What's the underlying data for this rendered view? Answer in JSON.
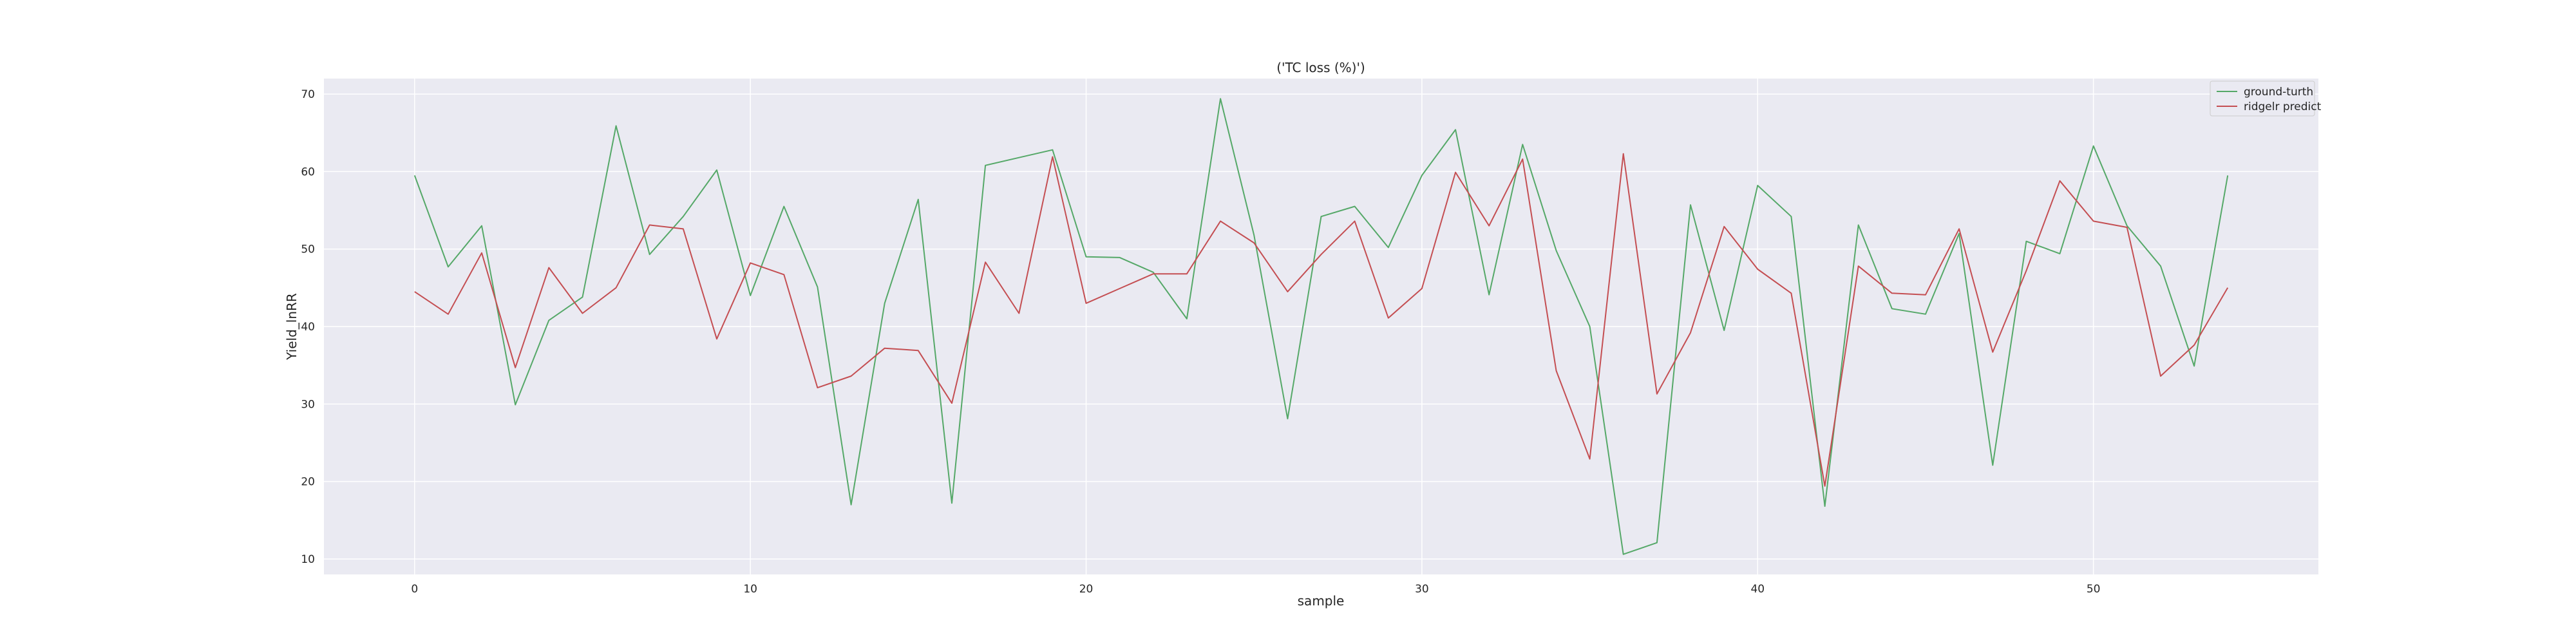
{
  "chart_data": {
    "type": "line",
    "title": "('TC loss (%)')",
    "xlabel": "sample",
    "ylabel": "Yield_lnRR",
    "xlim": [
      -2.7,
      56.7
    ],
    "ylim": [
      8,
      72
    ],
    "xticks": [
      0,
      10,
      20,
      30,
      40,
      50
    ],
    "yticks": [
      10,
      20,
      30,
      40,
      50,
      60,
      70
    ],
    "grid": true,
    "legend_position": "top-right",
    "x": [
      0,
      1,
      2,
      3,
      4,
      5,
      6,
      7,
      8,
      9,
      10,
      11,
      12,
      13,
      14,
      15,
      16,
      17,
      18,
      19,
      20,
      21,
      22,
      23,
      24,
      25,
      26,
      27,
      28,
      29,
      30,
      31,
      32,
      33,
      34,
      35,
      36,
      37,
      38,
      39,
      40,
      41,
      42,
      43,
      44,
      45,
      46,
      47,
      48,
      49,
      50,
      51,
      52,
      53,
      54
    ],
    "series": [
      {
        "name": "ground-turth",
        "color": "#55a868",
        "values": [
          59.5,
          47.7,
          53.0,
          29.9,
          40.8,
          43.8,
          65.9,
          49.3,
          54.2,
          60.2,
          44.0,
          55.5,
          45.1,
          17.0,
          43.0,
          56.4,
          17.2,
          60.8,
          61.8,
          62.8,
          49.0,
          48.9,
          47.0,
          41.0,
          69.4,
          51.8,
          28.1,
          54.2,
          55.5,
          50.2,
          59.5,
          65.4,
          44.1,
          63.5,
          49.8,
          40.0,
          10.6,
          12.1,
          55.7,
          39.5,
          58.2,
          54.2,
          16.8,
          53.1,
          42.3,
          41.6,
          52.0,
          22.1,
          51.0,
          49.4,
          63.3,
          53.0,
          47.8,
          34.9,
          59.5
        ]
      },
      {
        "name": "ridgelr predict",
        "color": "#c44e52",
        "values": [
          44.5,
          41.6,
          49.5,
          34.7,
          47.6,
          41.7,
          45.0,
          53.1,
          52.6,
          38.4,
          48.2,
          46.7,
          32.1,
          33.6,
          37.2,
          36.9,
          30.1,
          48.3,
          41.7,
          61.9,
          43.0,
          44.9,
          46.8,
          46.8,
          53.6,
          50.8,
          44.5,
          49.3,
          53.6,
          41.1,
          44.9,
          59.9,
          53.0,
          61.6,
          34.3,
          22.9,
          62.3,
          31.3,
          39.2,
          52.9,
          47.4,
          44.3,
          19.4,
          47.8,
          44.3,
          44.1,
          52.6,
          36.7,
          47.2,
          58.8,
          53.6,
          52.8,
          33.6,
          37.6,
          45.0
        ]
      }
    ]
  }
}
